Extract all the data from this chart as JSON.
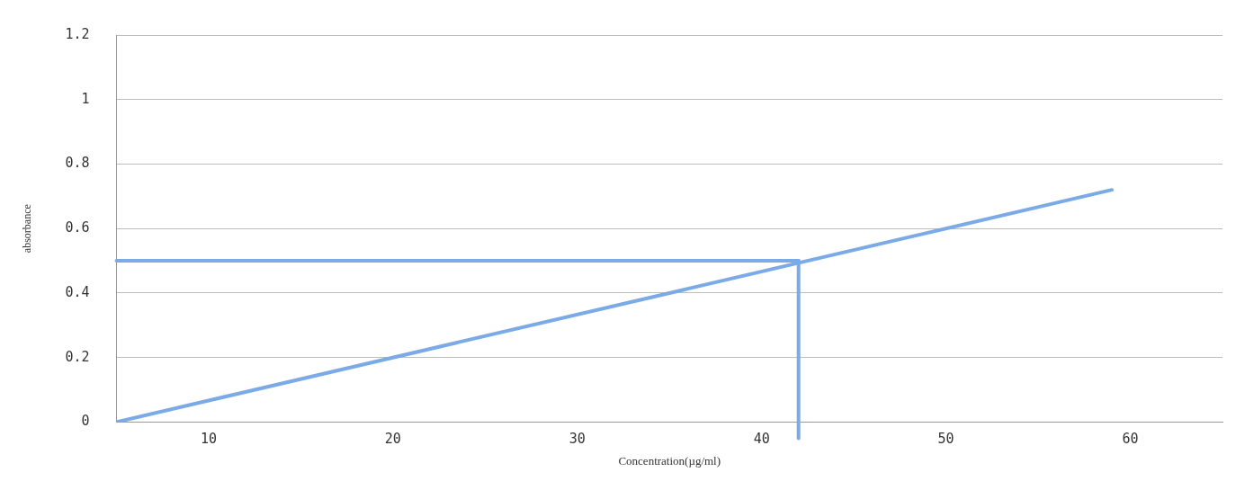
{
  "chart_data": {
    "type": "line",
    "xlabel": "Concentration(µg/ml)",
    "ylabel": "absorbance",
    "series": [
      {
        "color": "#7aaae8",
        "x": [
          5,
          59
        ],
        "values": [
          0,
          0.72
        ]
      }
    ],
    "xlim": [
      5,
      65
    ],
    "xticks": [
      10,
      20,
      30,
      40,
      50,
      60
    ],
    "ylim": [
      0,
      1.2
    ],
    "yticks": [
      0,
      0.2,
      0.4,
      0.6,
      0.8,
      1,
      1.2
    ],
    "grid": "y",
    "legend": false,
    "marker": "none",
    "line_style": "solid",
    "ref_lines": [
      {
        "axis": "y",
        "value": 0.5,
        "color": "#7aaae8"
      },
      {
        "axis": "x",
        "value": 42,
        "color": "#7aaae8"
      }
    ]
  }
}
